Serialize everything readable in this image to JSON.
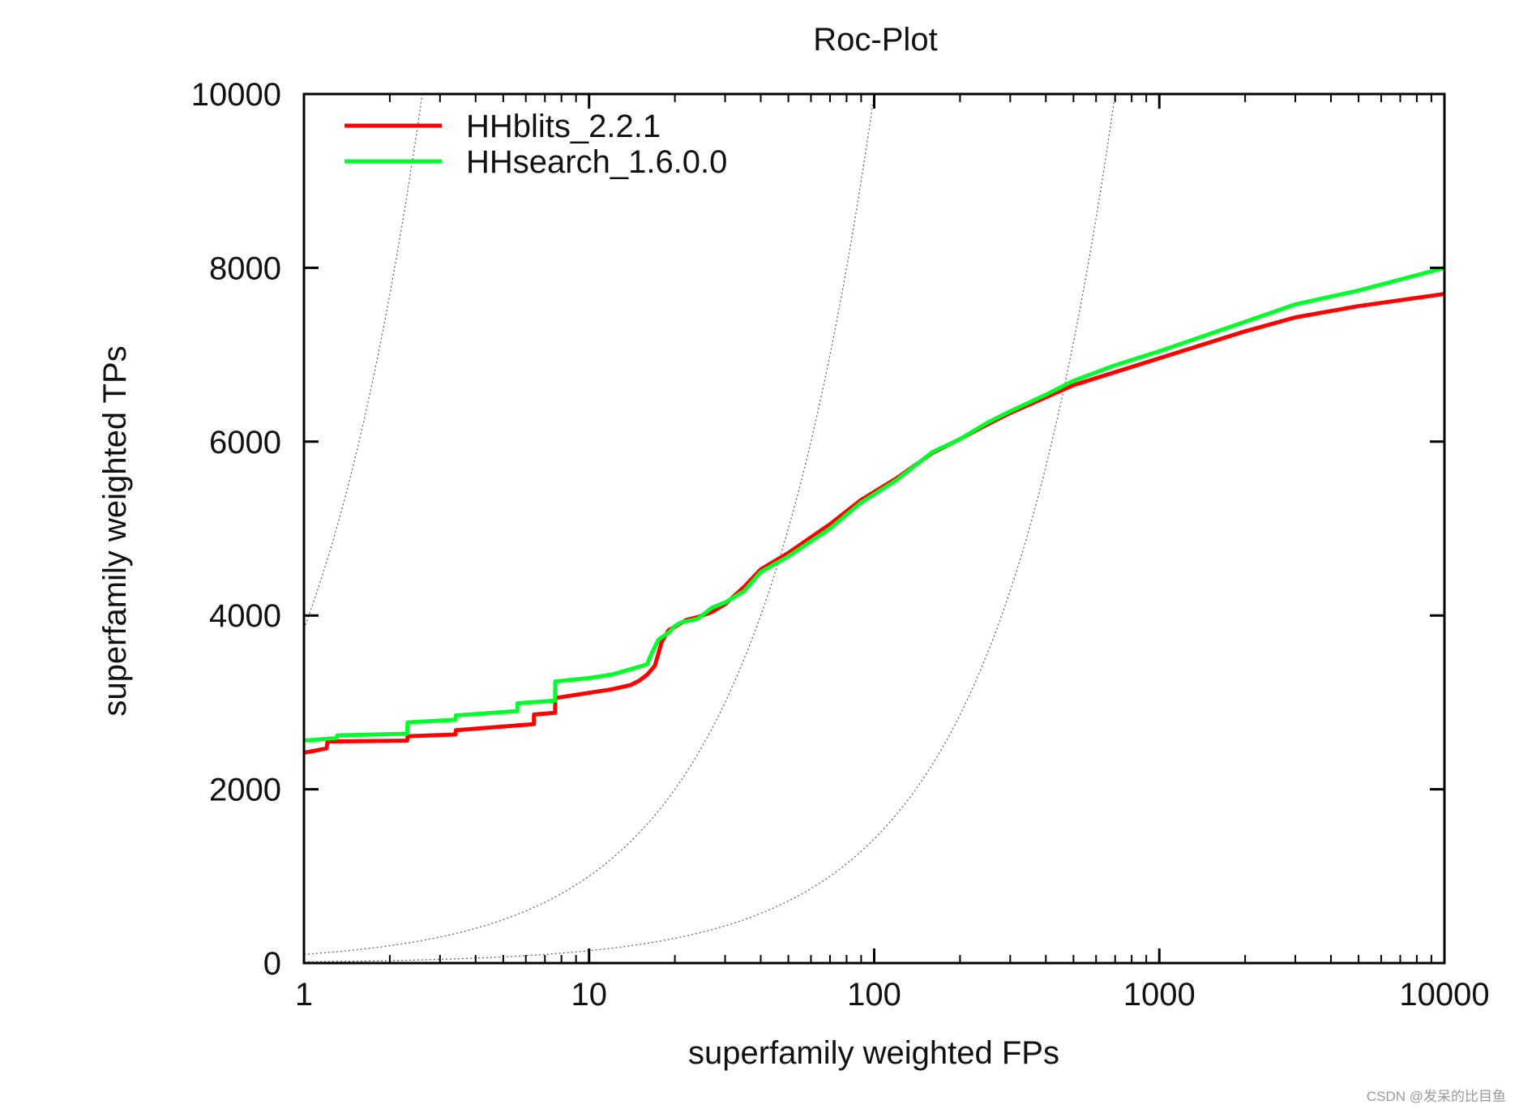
{
  "chart_data": {
    "type": "line",
    "title": "Roc-Plot",
    "xlabel": "superfamily weighted FPs",
    "ylabel": "superfamily weighted TPs",
    "xscale": "log",
    "xlim": [
      1,
      10000
    ],
    "ylim": [
      0,
      10000
    ],
    "x_ticks": [
      1,
      10,
      100,
      1000,
      10000
    ],
    "x_tick_labels": [
      "1",
      "10",
      "100",
      "1000",
      "10000"
    ],
    "y_ticks": [
      0,
      2000,
      4000,
      6000,
      8000,
      10000
    ],
    "y_tick_labels": [
      "0",
      "2000",
      "4000",
      "6000",
      "8000",
      "10000"
    ],
    "legend_position": "top-left",
    "series": [
      {
        "name": "HHblits_2.2.1",
        "color": "#ff0000",
        "x": [
          1,
          1.2,
          1.21,
          2.3,
          2.31,
          3.4,
          3.41,
          6.4,
          6.41,
          7.6,
          7.61,
          12,
          14,
          15,
          16,
          17,
          17.5,
          18,
          19,
          20,
          22,
          24,
          27,
          30,
          35,
          40,
          50,
          70,
          90,
          120,
          160,
          200,
          250,
          300,
          400,
          500,
          700,
          1000,
          2000,
          3000,
          5000,
          10000
        ],
        "y": [
          2420,
          2470,
          2550,
          2560,
          2610,
          2630,
          2680,
          2750,
          2860,
          2880,
          3050,
          3150,
          3200,
          3250,
          3320,
          3420,
          3560,
          3700,
          3830,
          3870,
          3950,
          3980,
          4040,
          4130,
          4330,
          4530,
          4720,
          5050,
          5330,
          5580,
          5870,
          6030,
          6200,
          6330,
          6510,
          6650,
          6800,
          6960,
          7270,
          7430,
          7560,
          7700
        ]
      },
      {
        "name": "HHsearch_1.6.0.0",
        "color": "#00ff2a",
        "x": [
          1,
          1.3,
          1.31,
          2.3,
          2.31,
          3.4,
          3.41,
          5.6,
          5.61,
          7.6,
          7.61,
          10,
          12,
          15,
          16,
          16.5,
          17.5,
          18,
          19,
          20,
          21,
          24,
          27,
          30,
          35,
          40,
          50,
          70,
          90,
          120,
          160,
          200,
          250,
          300,
          400,
          500,
          700,
          1000,
          2000,
          3000,
          5000,
          10000
        ],
        "y": [
          2560,
          2590,
          2620,
          2640,
          2770,
          2800,
          2850,
          2900,
          2990,
          3020,
          3240,
          3280,
          3320,
          3410,
          3440,
          3550,
          3720,
          3750,
          3800,
          3880,
          3920,
          3960,
          4090,
          4150,
          4280,
          4500,
          4680,
          5000,
          5300,
          5560,
          5880,
          6030,
          6220,
          6350,
          6540,
          6700,
          6880,
          7040,
          7380,
          7580,
          7740,
          8000
        ]
      }
    ],
    "reference_curves": {
      "style": "dotted",
      "color": "#666666",
      "x_intercepts_at_ytop": [
        2.6,
        100,
        700
      ]
    }
  },
  "watermark": "CSDN @发呆的比目鱼"
}
